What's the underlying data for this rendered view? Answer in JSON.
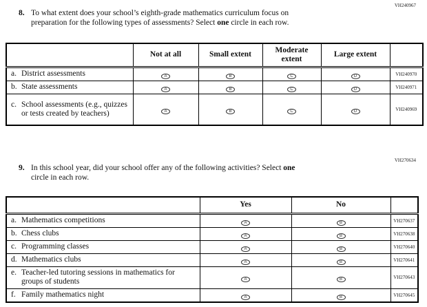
{
  "page": {
    "background": "#ffffff",
    "text_color": "#111111",
    "border_color": "#000000"
  },
  "questions": [
    {
      "code": "VH240967",
      "number": "8.",
      "segments": [
        {
          "t": "To what extent does your school’s eighth-grade mathematics curriculum focus on"
        },
        {
          "br": true
        },
        {
          "t": "preparation for the following types of assessments? Select "
        },
        {
          "t": "one",
          "b": true
        },
        {
          "t": " circle in each row."
        }
      ]
    },
    {
      "code": "VH270634",
      "number": "9.",
      "segments": [
        {
          "t": "In this school year, did your school offer any of the following activities? Select "
        },
        {
          "t": "one",
          "b": true
        },
        {
          "br": true
        },
        {
          "t": "circle in each row."
        }
      ]
    }
  ],
  "tables": [
    {
      "headers": [
        "Not at all",
        "Small extent",
        "Moderate extent",
        "Large extent"
      ],
      "rows": [
        {
          "letter": "a.",
          "label": "District assessments",
          "code": "VH240970",
          "options": [
            "A",
            "B",
            "C",
            "D"
          ]
        },
        {
          "letter": "b.",
          "label": "State assessments",
          "code": "VH240971",
          "options": [
            "A",
            "B",
            "C",
            "D"
          ]
        },
        {
          "letter": "c.",
          "label": "School assessments (e.g., quizzes or tests created by teachers)",
          "code": "VH240969",
          "options": [
            "A",
            "B",
            "C",
            "D"
          ]
        }
      ]
    },
    {
      "headers": [
        "Yes",
        "No"
      ],
      "rows": [
        {
          "letter": "a.",
          "label": "Mathematics competitions",
          "code": "VH270637",
          "options": [
            "A",
            "B"
          ]
        },
        {
          "letter": "b.",
          "label": "Chess clubs",
          "code": "VH270638",
          "options": [
            "A",
            "B"
          ]
        },
        {
          "letter": "c.",
          "label": "Programming classes",
          "code": "VH270640",
          "options": [
            "A",
            "B"
          ]
        },
        {
          "letter": "d.",
          "label": "Mathematics clubs",
          "code": "VH270641",
          "options": [
            "A",
            "B"
          ]
        },
        {
          "letter": "e.",
          "label": "Teacher-led tutoring sessions in mathematics for groups of students",
          "code": "VH270643",
          "options": [
            "A",
            "B"
          ]
        },
        {
          "letter": "f.",
          "label": "Family mathematics night",
          "code": "VH270645",
          "options": [
            "A",
            "B"
          ]
        }
      ]
    }
  ]
}
